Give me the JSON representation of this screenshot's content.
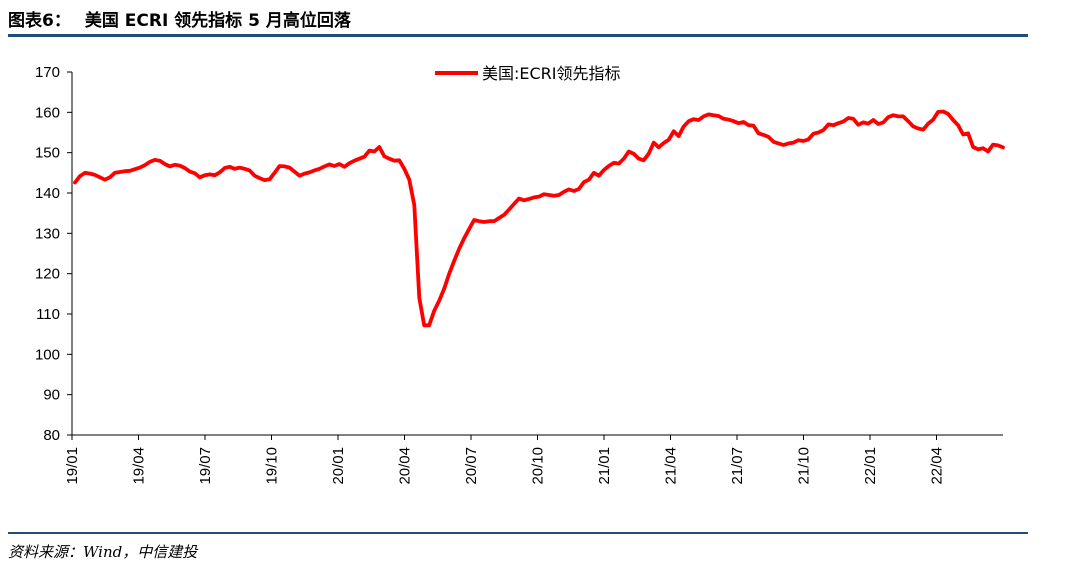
{
  "header": {
    "figure_number": "图表6：",
    "title": "美国 ECRI 领先指标 5 月高位回落"
  },
  "footer": {
    "source": "资料来源：Wind，中信建投"
  },
  "colors": {
    "series": "#ff0000",
    "rule": "#1f4e79",
    "axis": "#000000"
  },
  "chart_data": {
    "type": "line",
    "title": "",
    "xlabel": "",
    "ylabel": "",
    "ylim": [
      80,
      170
    ],
    "yticks": [
      80,
      90,
      100,
      110,
      120,
      130,
      140,
      150,
      160,
      170
    ],
    "xticks": [
      "19/01",
      "19/04",
      "19/07",
      "19/10",
      "20/01",
      "20/04",
      "20/07",
      "20/10",
      "21/01",
      "21/04",
      "21/07",
      "21/10",
      "22/01",
      "22/04"
    ],
    "grid": false,
    "legend_position": "top-center",
    "x_unit": "week",
    "series": [
      {
        "name": "美国:ECRI领先指标",
        "values": [
          142.6,
          144.2,
          145.0,
          144.8,
          144.5,
          143.9,
          143.3,
          143.9,
          145.0,
          145.2,
          145.4,
          145.5,
          145.9,
          146.3,
          146.9,
          147.7,
          148.2,
          148.0,
          147.2,
          146.6,
          147.0,
          146.8,
          146.2,
          145.3,
          144.9,
          143.9,
          144.4,
          144.6,
          144.4,
          145.1,
          146.2,
          146.5,
          146.0,
          146.3,
          146.0,
          145.6,
          144.3,
          143.7,
          143.2,
          143.4,
          145.0,
          146.7,
          146.6,
          146.3,
          145.3,
          144.3,
          144.8,
          145.1,
          145.6,
          146.0,
          146.6,
          147.1,
          146.7,
          147.2,
          146.5,
          147.4,
          148.0,
          148.5,
          149.0,
          150.5,
          150.3,
          151.4,
          149.1,
          148.5,
          148.0,
          148.1,
          146.0,
          143.3,
          137.0,
          114.0,
          107.2,
          107.2,
          110.8,
          113.3,
          116.3,
          120.0,
          123.2,
          126.2,
          128.8,
          131.1,
          133.3,
          133.0,
          132.8,
          133.0,
          133.0,
          133.8,
          134.6,
          135.9,
          137.3,
          138.6,
          138.2,
          138.5,
          138.9,
          139.1,
          139.7,
          139.5,
          139.3,
          139.5,
          140.3,
          140.9,
          140.5,
          141.0,
          142.7,
          143.3,
          145.0,
          144.3,
          145.7,
          146.7,
          147.5,
          147.3,
          148.5,
          150.3,
          149.7,
          148.5,
          148.1,
          149.8,
          152.5,
          151.3,
          152.4,
          153.2,
          155.3,
          154.1,
          156.5,
          157.8,
          158.3,
          158.1,
          159.0,
          159.5,
          159.3,
          159.1,
          158.4,
          158.2,
          157.8,
          157.3,
          157.6,
          156.8,
          156.7,
          154.8,
          154.4,
          153.9,
          152.7,
          152.3,
          151.9,
          152.3,
          152.5,
          153.1,
          152.9,
          153.3,
          154.7,
          155.0,
          155.6,
          157.0,
          156.8,
          157.3,
          157.7,
          158.6,
          158.4,
          156.9,
          157.5,
          157.2,
          158.1,
          157.1,
          157.5,
          158.8,
          159.3,
          159.0,
          159.0,
          157.8,
          156.5,
          156.0,
          155.7,
          157.2,
          158.2,
          160.1,
          160.2,
          159.6,
          158.1,
          156.8,
          154.5,
          154.8,
          151.4,
          150.8,
          151.1,
          150.3,
          152.0,
          151.8,
          151.3
        ]
      }
    ]
  }
}
